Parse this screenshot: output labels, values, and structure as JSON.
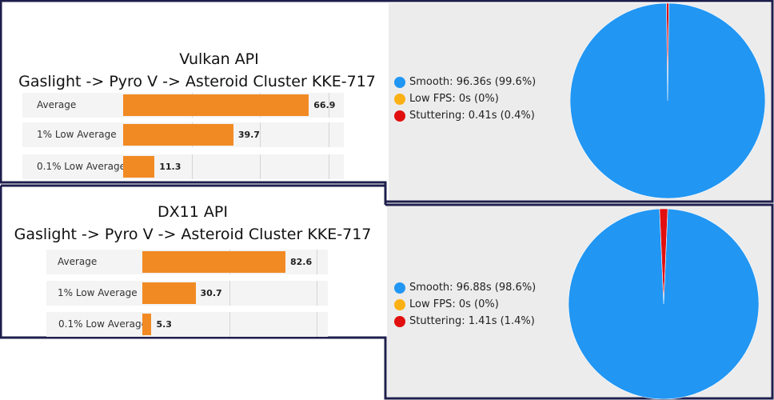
{
  "colors": {
    "smooth": "#2196f3",
    "low_fps": "#fbb014",
    "stuttering": "#e10f0f",
    "bar": "#f28a24",
    "frame": "#1f1f4d",
    "panel_bg": "#ececec"
  },
  "chart_data": [
    {
      "type": "bar",
      "title": "Vulkan API",
      "subtitle": "Gaslight -> Pyro V -> Asteroid Cluster KKE-717",
      "categories": [
        "Average",
        "1% Low Average",
        "0.1% Low Average"
      ],
      "values": [
        66.9,
        39.7,
        11.3
      ],
      "value_labels": [
        "66.9",
        "39.7",
        "11.3"
      ],
      "xlim": [
        0,
        70
      ],
      "grid": true
    },
    {
      "type": "pie",
      "slices": [
        {
          "name": "Smooth",
          "value": 96.36,
          "percent": 99.6,
          "label": "96.36s (99.6%)"
        },
        {
          "name": "Low FPS",
          "value": 0,
          "percent": 0,
          "label": "0s (0%)"
        },
        {
          "name": "Stuttering",
          "value": 0.41,
          "percent": 0.4,
          "label": "0.41s (0.4%)"
        }
      ],
      "legend_position": "left"
    },
    {
      "type": "bar",
      "title": "DX11 API",
      "subtitle": "Gaslight -> Pyro V -> Asteroid Cluster KKE-717",
      "categories": [
        "Average",
        "1% Low Average",
        "0.1% Low Average"
      ],
      "values": [
        82.6,
        30.7,
        5.3
      ],
      "value_labels": [
        "82.6",
        "30.7",
        "5.3"
      ],
      "xlim": [
        0,
        90
      ],
      "grid": true
    },
    {
      "type": "pie",
      "slices": [
        {
          "name": "Smooth",
          "value": 96.88,
          "percent": 98.6,
          "label": "96.88s (98.6%)"
        },
        {
          "name": "Low FPS",
          "value": 0,
          "percent": 0,
          "label": "0s (0%)"
        },
        {
          "name": "Stuttering",
          "value": 1.41,
          "percent": 1.4,
          "label": "1.41s (1.4%)"
        }
      ],
      "legend_position": "left"
    }
  ]
}
